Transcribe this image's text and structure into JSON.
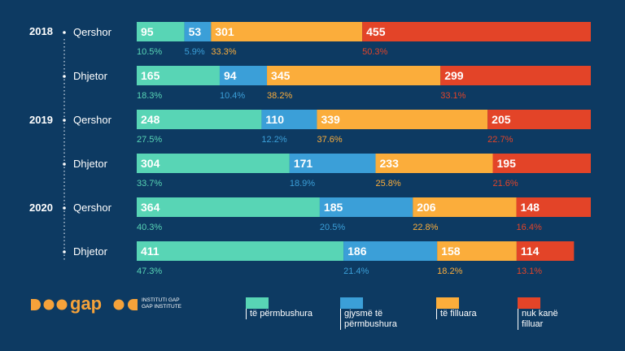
{
  "chart_data": {
    "type": "bar",
    "stacked": true,
    "orientation": "horizontal",
    "rows": [
      {
        "year": "2018",
        "period": "Qershor",
        "values": [
          95,
          53,
          301,
          455
        ],
        "pct": [
          "10.5%",
          "5.9%",
          "33.3%",
          "50.3%"
        ]
      },
      {
        "year": "",
        "period": "Dhjetor",
        "values": [
          165,
          94,
          345,
          299
        ],
        "pct": [
          "18.3%",
          "10.4%",
          "38.2%",
          "33.1%"
        ]
      },
      {
        "year": "2019",
        "period": "Qershor",
        "values": [
          248,
          110,
          339,
          205
        ],
        "pct": [
          "27.5%",
          "12.2%",
          "37.6%",
          "22.7%"
        ]
      },
      {
        "year": "",
        "period": "Dhjetor",
        "values": [
          304,
          171,
          233,
          195
        ],
        "pct": [
          "33.7%",
          "18.9%",
          "25.8%",
          "21.6%"
        ]
      },
      {
        "year": "2020",
        "period": "Qershor",
        "values": [
          364,
          185,
          206,
          148
        ],
        "pct": [
          "40.3%",
          "20.5%",
          "22.8%",
          "16.4%"
        ]
      },
      {
        "year": "",
        "period": "Dhjetor",
        "values": [
          411,
          186,
          158,
          114
        ],
        "pct": [
          "47.3%",
          "21.4%",
          "18.2%",
          "13.1%"
        ]
      }
    ],
    "series": [
      {
        "name": "të përmbushura",
        "color": "#58d5b5"
      },
      {
        "name": "gjysmë të përmbushura",
        "color": "#3b9fd8"
      },
      {
        "name": "të filluara",
        "color": "#fbad3b"
      },
      {
        "name": "nuk kanë filluar",
        "color": "#e34428"
      }
    ],
    "legend_position": "bottom",
    "grid": false
  },
  "logo": {
    "text": "gap",
    "sub_line1": "INSTITUTI GAP",
    "sub_line2": "GAP INSTITUTE",
    "color": "#f5a23a"
  }
}
